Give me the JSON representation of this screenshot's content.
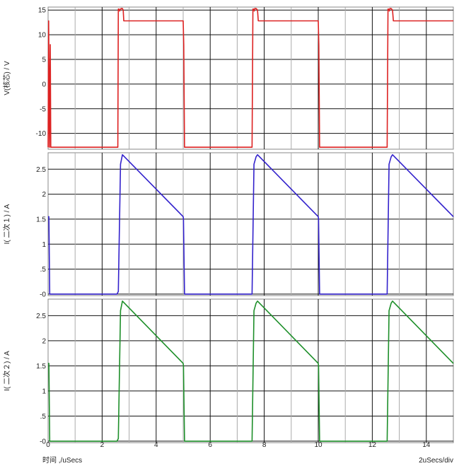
{
  "chart_data": [
    {
      "type": "line",
      "ylabel": "V(核芯) / V",
      "yticks": [
        -10,
        -5,
        0,
        5,
        10,
        15
      ],
      "ylim": [
        -13.2,
        15.6
      ],
      "color": "#dd2222",
      "series": [
        {
          "x": [
            0,
            0.02,
            0.05,
            0.08,
            0.1,
            2.58,
            2.6,
            2.63,
            2.65,
            2.7,
            2.75,
            2.78,
            2.8,
            5.0,
            5.02,
            5.05,
            7.55,
            7.58,
            7.6,
            7.63,
            7.65,
            7.7,
            7.75,
            7.78,
            7.8,
            10.0,
            10.02,
            10.05,
            12.55,
            12.58,
            12.6,
            12.63,
            12.65,
            12.7,
            12.75,
            12.78,
            12.8,
            15.0
          ],
          "y": [
            -12.8,
            12.8,
            -12.8,
            8.0,
            -12.8,
            -12.8,
            15.2,
            15.2,
            14.8,
            15.3,
            15.3,
            15.0,
            12.8,
            12.8,
            8.0,
            -12.8,
            -12.8,
            15.2,
            15.2,
            14.8,
            15.3,
            15.3,
            15.0,
            12.8,
            12.8,
            12.8,
            8.0,
            -12.8,
            -12.8,
            15.2,
            15.2,
            14.8,
            15.3,
            15.3,
            15.0,
            12.8,
            12.8,
            12.8
          ]
        }
      ]
    },
    {
      "type": "line",
      "ylabel": "I(  二次１) / A",
      "yticks": [
        0,
        0.5,
        1,
        1.5,
        2,
        2.5
      ],
      "ytick_labels": [
        "-0",
        ".5",
        "1",
        "1.5",
        "2",
        "2.5"
      ],
      "ylim": [
        -0.03,
        2.83
      ],
      "color": "#3322cc",
      "series": [
        {
          "x": [
            0,
            0.03,
            0.06,
            2.55,
            2.6,
            2.68,
            2.75,
            5.0,
            5.01,
            5.05,
            7.55,
            7.62,
            7.7,
            7.75,
            10.0,
            10.01,
            10.05,
            12.55,
            12.62,
            12.7,
            12.75,
            15.0
          ],
          "y": [
            1.55,
            1.55,
            0.0,
            0.0,
            0.05,
            2.6,
            2.79,
            1.55,
            1.5,
            0.0,
            0.0,
            2.6,
            2.75,
            2.79,
            1.55,
            1.5,
            0.0,
            0.0,
            2.6,
            2.75,
            2.79,
            1.55
          ]
        }
      ]
    },
    {
      "type": "line",
      "ylabel": "I(  二次２) / A",
      "yticks": [
        0,
        0.5,
        1,
        1.5,
        2,
        2.5
      ],
      "ytick_labels": [
        "-0",
        ".5",
        "1",
        "1.5",
        "2",
        "2.5"
      ],
      "ylim": [
        -0.03,
        2.83
      ],
      "color": "#1e8f2a",
      "xlabel": "时间 ,/uSecs",
      "xticks": [
        0,
        2,
        4,
        6,
        8,
        10,
        12,
        14
      ],
      "xlim": [
        0,
        15
      ],
      "scale_note": "2uSecs/div",
      "series": [
        {
          "x": [
            0,
            0.03,
            0.06,
            2.55,
            2.6,
            2.68,
            2.75,
            5.0,
            5.01,
            5.05,
            7.55,
            7.62,
            7.7,
            7.75,
            10.0,
            10.01,
            10.05,
            12.55,
            12.62,
            12.7,
            12.75,
            15.0
          ],
          "y": [
            1.55,
            1.55,
            0.0,
            0.0,
            0.05,
            2.6,
            2.79,
            1.55,
            1.5,
            0.0,
            0.0,
            2.6,
            2.75,
            2.79,
            1.55,
            1.5,
            0.0,
            0.0,
            2.6,
            2.75,
            2.79,
            1.55
          ]
        }
      ]
    }
  ]
}
